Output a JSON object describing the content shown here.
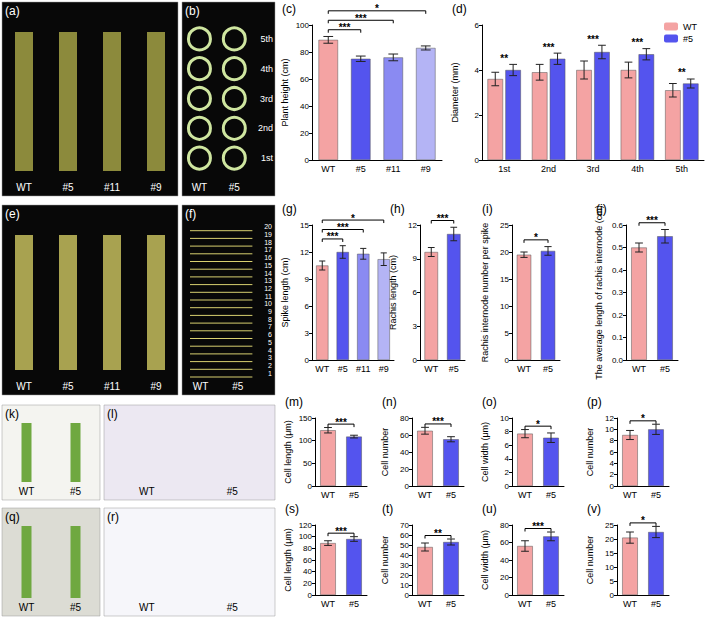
{
  "chart_data": [
    {
      "panel": "(c)",
      "type": "bar",
      "y_label": "Plant height (cm)",
      "categories": [
        "WT",
        "#5",
        "#11",
        "#9"
      ],
      "values": [
        89,
        75,
        76,
        83
      ],
      "errors": [
        2.5,
        2,
        2.5,
        1.5
      ],
      "colors": [
        "#f4a3a3",
        "#5454ee",
        "#8a8af2",
        "#b4b4f5"
      ],
      "ylim": [
        0,
        100
      ],
      "yticks": [
        0,
        20,
        40,
        60,
        80,
        100
      ],
      "grid": false,
      "significance": [
        {
          "from": 0,
          "to": 1,
          "label": "***"
        },
        {
          "from": 0,
          "to": 2,
          "label": "***"
        },
        {
          "from": 0,
          "to": 3,
          "label": "*"
        }
      ]
    },
    {
      "panel": "(d)",
      "type": "bar",
      "y_label": "Diameter (mm)",
      "categories": [
        "1st",
        "2nd",
        "3rd",
        "4th",
        "5th"
      ],
      "series": [
        {
          "name": "WT",
          "color": "#f4a3a3",
          "values": [
            3.6,
            3.9,
            4.0,
            4.0,
            3.1
          ],
          "errors": [
            0.3,
            0.35,
            0.4,
            0.35,
            0.3
          ]
        },
        {
          "name": "#5",
          "color": "#5454ee",
          "values": [
            4.0,
            4.5,
            4.8,
            4.7,
            3.4
          ],
          "errors": [
            0.25,
            0.25,
            0.3,
            0.25,
            0.2
          ]
        }
      ],
      "ylim": [
        0,
        6
      ],
      "yticks": [
        0,
        2,
        4,
        6
      ],
      "grid": false,
      "legend": "upper right",
      "significance": [
        {
          "category": 0,
          "label": "**"
        },
        {
          "category": 1,
          "label": "***"
        },
        {
          "category": 2,
          "label": "***"
        },
        {
          "category": 3,
          "label": "***"
        },
        {
          "category": 4,
          "label": "**"
        }
      ]
    },
    {
      "panel": "(g)",
      "type": "bar",
      "y_label": "Spike length (cm)",
      "categories": [
        "WT",
        "#5",
        "#11",
        "#9"
      ],
      "values": [
        10.5,
        12.0,
        11.8,
        11.2
      ],
      "errors": [
        0.5,
        0.7,
        0.6,
        0.7
      ],
      "colors": [
        "#f4a3a3",
        "#5454ee",
        "#8a8af2",
        "#b4b4f5"
      ],
      "ylim": [
        0,
        15
      ],
      "yticks": [
        0,
        3,
        6,
        9,
        12,
        15
      ],
      "grid": false,
      "significance": [
        {
          "from": 0,
          "to": 1,
          "label": "***"
        },
        {
          "from": 0,
          "to": 2,
          "label": "***"
        },
        {
          "from": 0,
          "to": 3,
          "label": "*"
        }
      ]
    },
    {
      "panel": "(h)",
      "type": "bar",
      "y_label": "Rachis length (cm)",
      "categories": [
        "WT",
        "#5"
      ],
      "values": [
        9.6,
        11.2
      ],
      "errors": [
        0.4,
        0.6
      ],
      "colors": [
        "#f4a3a3",
        "#5454ee"
      ],
      "ylim": [
        0,
        12
      ],
      "yticks": [
        0,
        3,
        6,
        9,
        12
      ],
      "grid": false,
      "significance": [
        {
          "from": 0,
          "to": 1,
          "label": "***"
        }
      ]
    },
    {
      "panel": "(i)",
      "type": "bar",
      "y_label": "Rachis internode number per spike",
      "categories": [
        "WT",
        "#5"
      ],
      "values": [
        19.5,
        20.2
      ],
      "errors": [
        0.5,
        0.8
      ],
      "colors": [
        "#f4a3a3",
        "#5454ee"
      ],
      "ylim": [
        0,
        25
      ],
      "yticks": [
        0,
        5,
        10,
        15,
        20,
        25
      ],
      "grid": false,
      "significance": [
        {
          "from": 0,
          "to": 1,
          "label": "*"
        }
      ]
    },
    {
      "panel": "(j)",
      "type": "bar",
      "y_label": "The average length of rachis internode (cm)",
      "categories": [
        "WT",
        "#5"
      ],
      "values": [
        0.5,
        0.55
      ],
      "errors": [
        0.02,
        0.03
      ],
      "colors": [
        "#f4a3a3",
        "#5454ee"
      ],
      "ylim": [
        0,
        0.6
      ],
      "yticks": [
        {
          "value": 0,
          "label": "0.0"
        },
        0.1,
        0.2,
        0.3,
        0.4,
        0.5,
        0.6
      ],
      "grid": false,
      "significance": [
        {
          "from": 0,
          "to": 1,
          "label": "***"
        }
      ]
    },
    {
      "panel": "(m)",
      "type": "bar",
      "y_label": "Cell length (μm)",
      "categories": [
        "WT",
        "#5"
      ],
      "values": [
        123,
        109
      ],
      "errors": [
        6,
        3
      ],
      "colors": [
        "#f4a3a3",
        "#5454ee"
      ],
      "ylim": [
        0,
        150
      ],
      "yticks": [
        0,
        50,
        100,
        150
      ],
      "grid": false,
      "significance": [
        {
          "from": 0,
          "to": 1,
          "label": "***"
        }
      ]
    },
    {
      "panel": "(n)",
      "type": "bar",
      "y_label": "Cell number",
      "categories": [
        "WT",
        "#5"
      ],
      "values": [
        65,
        55
      ],
      "errors": [
        4,
        3
      ],
      "colors": [
        "#f4a3a3",
        "#5454ee"
      ],
      "ylim": [
        0,
        80
      ],
      "yticks": [
        0,
        20,
        40,
        60,
        80
      ],
      "grid": false,
      "significance": [
        {
          "from": 0,
          "to": 1,
          "label": "***"
        }
      ]
    },
    {
      "panel": "(o)",
      "type": "bar",
      "y_label": "Cell width (μm)",
      "categories": [
        "WT",
        "#5"
      ],
      "values": [
        7.7,
        7.1
      ],
      "errors": [
        0.6,
        0.7
      ],
      "colors": [
        "#f4a3a3",
        "#5454ee"
      ],
      "ylim": [
        0,
        10
      ],
      "yticks": [
        0,
        2,
        4,
        6,
        8,
        10
      ],
      "grid": false,
      "significance": [
        {
          "from": 0,
          "to": 1,
          "label": "*"
        }
      ]
    },
    {
      "panel": "(p)",
      "type": "bar",
      "y_label": "Cell number",
      "categories": [
        "WT",
        "#5"
      ],
      "values": [
        9.0,
        10.0
      ],
      "errors": [
        0.8,
        0.9
      ],
      "colors": [
        "#f4a3a3",
        "#5454ee"
      ],
      "ylim": [
        0,
        12
      ],
      "yticks": [
        0,
        2,
        4,
        6,
        8,
        10,
        12
      ],
      "grid": false,
      "significance": [
        {
          "from": 0,
          "to": 1,
          "label": "*"
        }
      ]
    },
    {
      "panel": "(s)",
      "type": "bar",
      "y_label": "Cell length (μm)",
      "categories": [
        "WT",
        "#5"
      ],
      "values": [
        89,
        96
      ],
      "errors": [
        4,
        4
      ],
      "colors": [
        "#f4a3a3",
        "#5454ee"
      ],
      "ylim": [
        0,
        120
      ],
      "yticks": [
        0,
        20,
        40,
        60,
        80,
        100,
        120
      ],
      "grid": false,
      "significance": [
        {
          "from": 0,
          "to": 1,
          "label": "***"
        }
      ]
    },
    {
      "panel": "(t)",
      "type": "bar",
      "y_label": "Cell number",
      "categories": [
        "WT",
        "#5"
      ],
      "values": [
        48,
        53
      ],
      "errors": [
        4,
        3
      ],
      "colors": [
        "#f4a3a3",
        "#5454ee"
      ],
      "ylim": [
        0,
        70
      ],
      "yticks": [
        0,
        10,
        20,
        30,
        40,
        50,
        60,
        70
      ],
      "grid": false,
      "significance": [
        {
          "from": 0,
          "to": 1,
          "label": "**"
        }
      ]
    },
    {
      "panel": "(u)",
      "type": "bar",
      "y_label": "Cell width (μm)",
      "categories": [
        "WT",
        "#5"
      ],
      "values": [
        56,
        67
      ],
      "errors": [
        6,
        5
      ],
      "colors": [
        "#f4a3a3",
        "#5454ee"
      ],
      "ylim": [
        0,
        80
      ],
      "yticks": [
        0,
        20,
        40,
        60,
        80
      ],
      "grid": false,
      "significance": [
        {
          "from": 0,
          "to": 1,
          "label": "***"
        }
      ]
    },
    {
      "panel": "(v)",
      "type": "bar",
      "y_label": "Cell number",
      "categories": [
        "WT",
        "#5"
      ],
      "values": [
        20.5,
        22.5
      ],
      "errors": [
        2,
        2
      ],
      "colors": [
        "#f4a3a3",
        "#5454ee"
      ],
      "ylim": [
        0,
        25
      ],
      "yticks": [
        0,
        5,
        10,
        15,
        20,
        25
      ],
      "grid": false,
      "significance": [
        {
          "from": 0,
          "to": 1,
          "label": "*"
        }
      ]
    }
  ],
  "photos": [
    {
      "panel": "(a)",
      "labels": [
        "WT",
        "#5",
        "#11",
        "#9"
      ]
    },
    {
      "panel": "(b)",
      "labels": [
        "WT",
        "#5"
      ],
      "section_labels": [
        "5th",
        "4th",
        "3rd",
        "2nd",
        "1st"
      ]
    },
    {
      "panel": "(e)",
      "labels": [
        "WT",
        "#5",
        "#11",
        "#9"
      ]
    },
    {
      "panel": "(f)",
      "labels": [
        "WT",
        "#5"
      ],
      "internode_labels": [
        1,
        2,
        3,
        4,
        5,
        6,
        7,
        8,
        9,
        10,
        11,
        12,
        13,
        14,
        15,
        16,
        17,
        18,
        19,
        20
      ]
    },
    {
      "panel": "(k)",
      "labels": [
        "WT",
        "#5"
      ]
    },
    {
      "panel": "(l)",
      "labels": [
        "WT",
        "#5"
      ]
    },
    {
      "panel": "(q)",
      "labels": [
        "WT",
        "#5"
      ]
    },
    {
      "panel": "(r)",
      "labels": [
        "WT",
        "#5"
      ]
    }
  ]
}
